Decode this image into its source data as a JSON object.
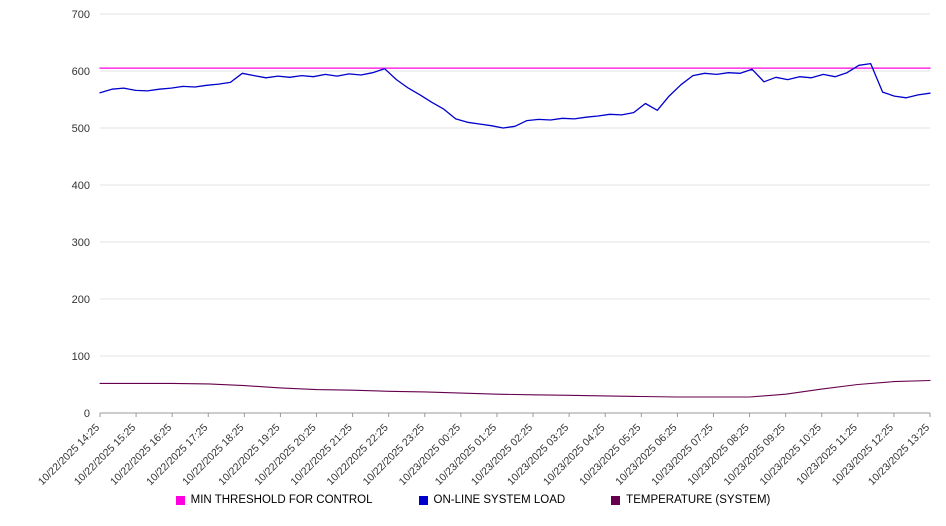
{
  "chart_data": {
    "type": "line",
    "title": "",
    "xlabel": "",
    "ylabel": "",
    "ylim": [
      0,
      700
    ],
    "yticks": [
      0,
      100,
      200,
      300,
      400,
      500,
      600,
      700
    ],
    "grid": true,
    "legend_position": "bottom",
    "x_labels": [
      "10/22/2025 14:25",
      "10/22/2025 15:25",
      "10/22/2025 16:25",
      "10/22/2025 17:25",
      "10/22/2025 18:25",
      "10/22/2025 19:25",
      "10/22/2025 20:25",
      "10/22/2025 21:25",
      "10/22/2025 22:25",
      "10/22/2025 23:25",
      "10/23/2025 00:25",
      "10/23/2025 01:25",
      "10/23/2025 02:25",
      "10/23/2025 03:25",
      "10/23/2025 04:25",
      "10/23/2025 05:25",
      "10/23/2025 06:25",
      "10/23/2025 07:25",
      "10/23/2025 08:25",
      "10/23/2025 09:25",
      "10/23/2025 10:25",
      "10/23/2025 11:25",
      "10/23/2025 12:25",
      "10/23/2025 13:25"
    ],
    "series": [
      {
        "name": "MIN THRESHOLD FOR CONTROL",
        "color": "#ff00e0",
        "width": 1.3,
        "values": [
          605,
          605
        ]
      },
      {
        "name": "ON-LINE SYSTEM LOAD",
        "color": "#0000cd",
        "width": 1.3,
        "values": [
          562,
          568,
          570,
          566,
          565,
          568,
          570,
          573,
          572,
          575,
          577,
          580,
          596,
          592,
          588,
          591,
          589,
          592,
          590,
          594,
          591,
          595,
          593,
          597,
          604,
          585,
          570,
          558,
          545,
          533,
          516,
          510,
          507,
          504,
          500,
          503,
          513,
          515,
          514,
          517,
          516,
          519,
          521,
          524,
          523,
          527,
          543,
          531,
          556,
          576,
          592,
          596,
          594,
          597,
          596,
          603,
          581,
          589,
          585,
          590,
          588,
          594,
          590,
          597,
          610,
          613,
          563,
          556,
          553,
          558,
          561
        ]
      },
      {
        "name": "TEMPERATURE (SYSTEM)",
        "color": "#66004e",
        "width": 1.1,
        "values": [
          52,
          52,
          52,
          51,
          48,
          44,
          41,
          40,
          38,
          37,
          35,
          33,
          32,
          31,
          30,
          29,
          28,
          28,
          28,
          33,
          42,
          50,
          55,
          57
        ]
      }
    ]
  }
}
